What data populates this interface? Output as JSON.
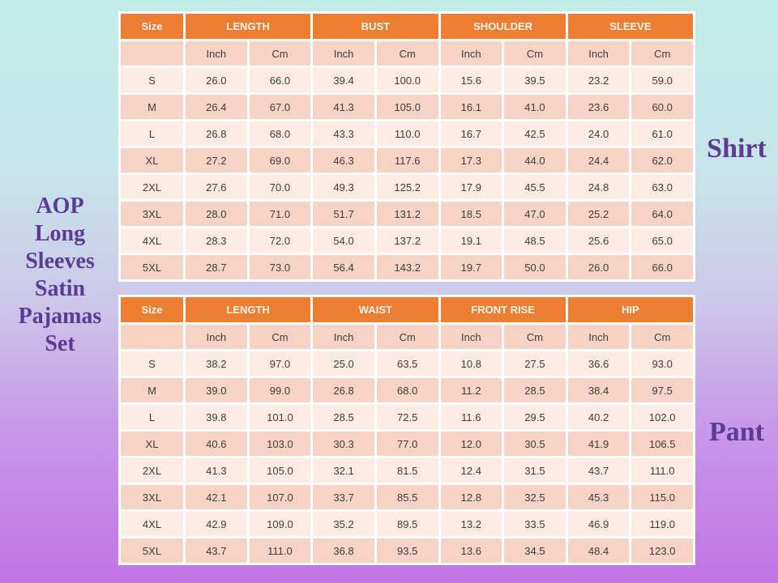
{
  "title": {
    "lines": [
      "AOP",
      "Long",
      "Sleeves",
      "Satin",
      "Pajamas",
      "Set"
    ],
    "full_text": "AOP Long Sleeves Satin Pajamas Set"
  },
  "labels": {
    "shirt": "Shirt",
    "pant": "Pant"
  },
  "colors": {
    "bg_top": "#c2ece7",
    "bg_bottom": "#c273e6",
    "header_orange": "#ed7d31",
    "header_text": "#fdf6f0",
    "band_light": "#fcebe3",
    "band_dark": "#f6d3c4",
    "grid_white": "#ffffff",
    "cell_text": "#3d3d3d",
    "purple_text": "#5c3a96"
  },
  "chart_data": [
    {
      "type": "table",
      "title": "Shirt",
      "group_headers": [
        "Size",
        "LENGTH",
        "BUST",
        "SHOULDER",
        "SLEEVE"
      ],
      "unit_headers": [
        "Inch",
        "Cm",
        "Inch",
        "Cm",
        "Inch",
        "Cm",
        "Inch",
        "Cm"
      ],
      "rows": [
        [
          "S",
          "26.0",
          "66.0",
          "39.4",
          "100.0",
          "15.6",
          "39.5",
          "23.2",
          "59.0"
        ],
        [
          "M",
          "26.4",
          "67.0",
          "41.3",
          "105.0",
          "16.1",
          "41.0",
          "23.6",
          "60.0"
        ],
        [
          "L",
          "26.8",
          "68.0",
          "43.3",
          "110.0",
          "16.7",
          "42.5",
          "24.0",
          "61.0"
        ],
        [
          "XL",
          "27.2",
          "69.0",
          "46.3",
          "117.6",
          "17.3",
          "44.0",
          "24.4",
          "62.0"
        ],
        [
          "2XL",
          "27.6",
          "70.0",
          "49.3",
          "125.2",
          "17.9",
          "45.5",
          "24.8",
          "63.0"
        ],
        [
          "3XL",
          "28.0",
          "71.0",
          "51.7",
          "131.2",
          "18.5",
          "47.0",
          "25.2",
          "64.0"
        ],
        [
          "4XL",
          "28.3",
          "72.0",
          "54.0",
          "137.2",
          "19.1",
          "48.5",
          "25.6",
          "65.0"
        ],
        [
          "5XL",
          "28.7",
          "73.0",
          "56.4",
          "143.2",
          "19.7",
          "50.0",
          "26.0",
          "66.0"
        ]
      ]
    },
    {
      "type": "table",
      "title": "Pant",
      "group_headers": [
        "Size",
        "LENGTH",
        "WAIST",
        "FRONT RISE",
        "HIP"
      ],
      "unit_headers": [
        "Inch",
        "Cm",
        "Inch",
        "Cm",
        "Inch",
        "Cm",
        "Inch",
        "Cm"
      ],
      "rows": [
        [
          "S",
          "38.2",
          "97.0",
          "25.0",
          "63.5",
          "10.8",
          "27.5",
          "36.6",
          "93.0"
        ],
        [
          "M",
          "39.0",
          "99.0",
          "26.8",
          "68.0",
          "11.2",
          "28.5",
          "38.4",
          "97.5"
        ],
        [
          "L",
          "39.8",
          "101.0",
          "28.5",
          "72.5",
          "11.6",
          "29.5",
          "40.2",
          "102.0"
        ],
        [
          "XL",
          "40.6",
          "103.0",
          "30.3",
          "77.0",
          "12.0",
          "30.5",
          "41.9",
          "106.5"
        ],
        [
          "2XL",
          "41.3",
          "105.0",
          "32.1",
          "81.5",
          "12.4",
          "31.5",
          "43.7",
          "111.0"
        ],
        [
          "3XL",
          "42.1",
          "107.0",
          "33.7",
          "85.5",
          "12.8",
          "32.5",
          "45.3",
          "115.0"
        ],
        [
          "4XL",
          "42.9",
          "109.0",
          "35.2",
          "89.5",
          "13.2",
          "33.5",
          "46.9",
          "119.0"
        ],
        [
          "5XL",
          "43.7",
          "111.0",
          "36.8",
          "93.5",
          "13.6",
          "34.5",
          "48.4",
          "123.0"
        ]
      ]
    }
  ]
}
